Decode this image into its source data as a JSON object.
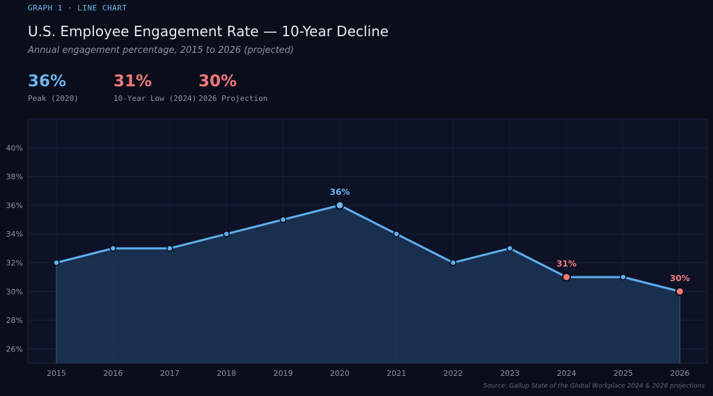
{
  "header": {
    "eyebrow": "GRAPH 1  ·  LINE CHART",
    "title": "U.S. Employee Engagement Rate — 10-Year Decline",
    "subtitle": "Annual engagement percentage, 2015 to 2026 (projected)"
  },
  "stats": [
    {
      "value": "36%",
      "label": "Peak (2020)",
      "color": "#6eb4f0"
    },
    {
      "value": "31%",
      "label": "10-Year Low (2024)",
      "color": "#f07a7a"
    },
    {
      "value": "30%",
      "label": "2026 Projection",
      "color": "#f07a7a"
    }
  ],
  "chart_data": {
    "type": "line",
    "x": [
      "2015",
      "2016",
      "2017",
      "2018",
      "2019",
      "2020",
      "2021",
      "2022",
      "2023",
      "2024",
      "2025",
      "2026"
    ],
    "series": [
      {
        "values": [
          32,
          33,
          33,
          34,
          35,
          36,
          34,
          32,
          33,
          31,
          31,
          30
        ]
      }
    ],
    "ylim": [
      25,
      42
    ],
    "yticks": [
      26,
      28,
      30,
      32,
      34,
      36,
      38,
      40
    ],
    "ytick_labels": [
      "26%",
      "28%",
      "30%",
      "32%",
      "34%",
      "36%",
      "38%",
      "40%"
    ],
    "grid": true,
    "annotations": [
      {
        "x": "2020",
        "y": 36,
        "text": "36%",
        "color": "#6eb4f0"
      },
      {
        "x": "2024",
        "y": 31,
        "text": "31%",
        "color": "#f07a7a"
      },
      {
        "x": "2026",
        "y": 30,
        "text": "30%",
        "color": "#f07a7a"
      }
    ],
    "colors": {
      "line": "#5eb0ee",
      "highlight_low": "#f07a7a",
      "peak": "#6eb4f0"
    }
  },
  "footer": {
    "source": "Source: Gallup State of the Global Workplace 2024 & 2026 projections"
  }
}
